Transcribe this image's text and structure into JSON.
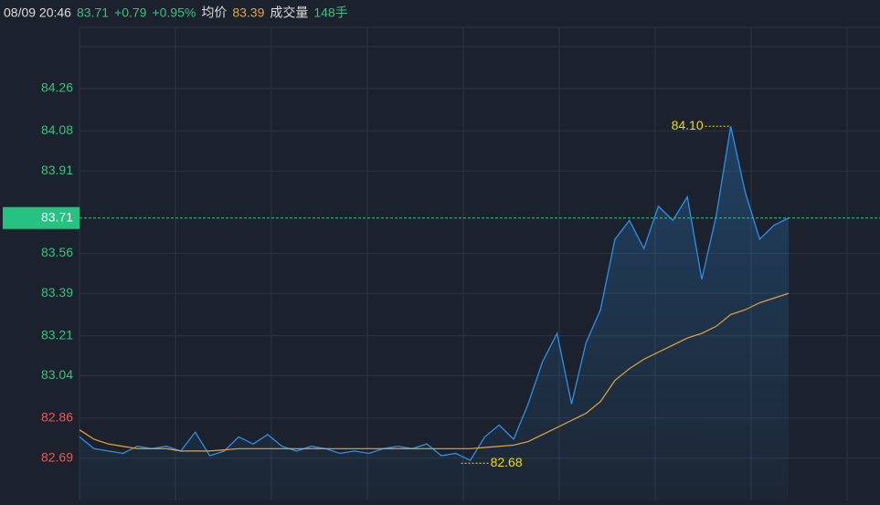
{
  "chart_data": {
    "type": "line",
    "time": "08/09 20:46",
    "price": 83.71,
    "change": "+0.79",
    "change_pct": "+0.95%",
    "avg_value": 83.39,
    "volume_label": "成交量",
    "volume": "148手",
    "high_label": "84.10",
    "low_label": "82.68",
    "ylim": [
      82.51,
      84.52
    ],
    "yticks": [
      84.26,
      84.08,
      83.91,
      83.56,
      83.39,
      83.21,
      83.04,
      82.86,
      82.69
    ],
    "grid": true,
    "series": [
      {
        "color": "#2f8fe6",
        "values": [
          82.78,
          82.73,
          82.72,
          82.71,
          82.74,
          82.73,
          82.74,
          82.72,
          82.8,
          82.7,
          82.72,
          82.78,
          82.75,
          82.79,
          82.74,
          82.72,
          82.74,
          82.73,
          82.71,
          82.72,
          82.71,
          82.73,
          82.74,
          82.73,
          82.75,
          82.7,
          82.71,
          82.68,
          82.78,
          82.83,
          82.77,
          82.92,
          83.1,
          83.22,
          82.92,
          83.18,
          83.32,
          83.62,
          83.7,
          83.58,
          83.76,
          83.7,
          83.8,
          83.45,
          83.72,
          84.1,
          83.82,
          83.62,
          83.68,
          83.71
        ]
      },
      {
        "name": "均价",
        "color": "#e8a53a",
        "values": [
          82.81,
          82.77,
          82.75,
          82.74,
          82.73,
          82.73,
          82.73,
          82.72,
          82.72,
          82.72,
          82.725,
          82.73,
          82.73,
          82.73,
          82.73,
          82.73,
          82.73,
          82.73,
          82.73,
          82.73,
          82.73,
          82.73,
          82.73,
          82.73,
          82.73,
          82.73,
          82.73,
          82.73,
          82.735,
          82.74,
          82.745,
          82.76,
          82.79,
          82.82,
          82.85,
          82.88,
          82.93,
          83.02,
          83.07,
          83.11,
          83.14,
          83.17,
          83.2,
          83.22,
          83.25,
          83.3,
          83.32,
          83.35,
          83.37,
          83.39
        ]
      }
    ]
  }
}
